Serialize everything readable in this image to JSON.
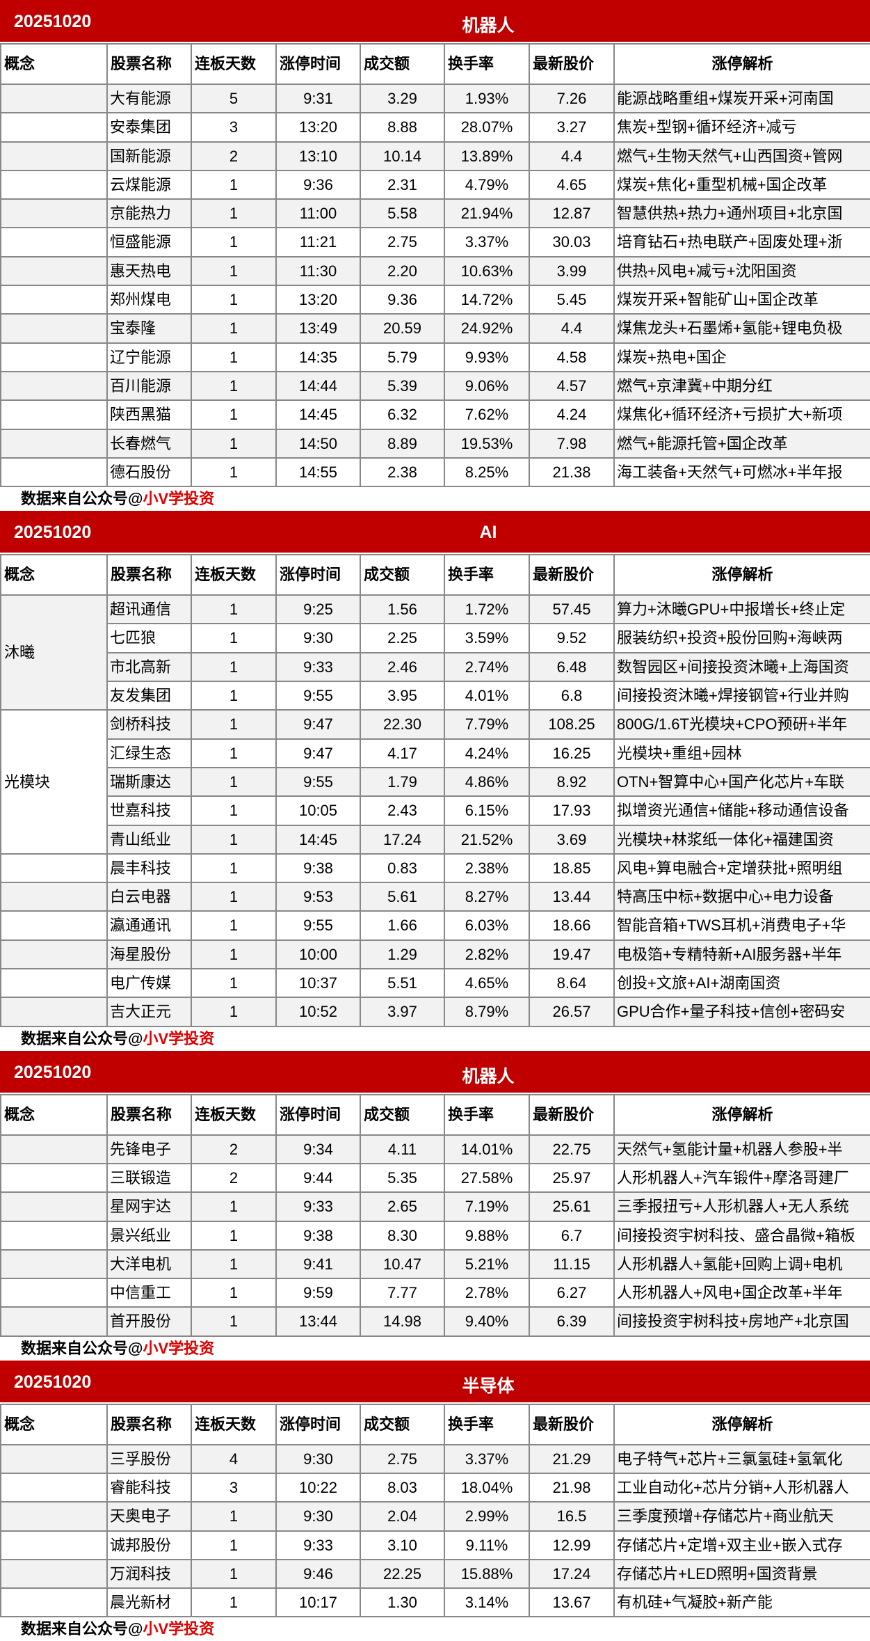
{
  "headers": [
    "概念",
    "股票名称",
    "连板天数",
    "涨停时间",
    "成交额",
    "换手率",
    "最新股价",
    "涨停解析"
  ],
  "footer": {
    "prefix": "数据来自公众号@",
    "brand": "小V学投资"
  },
  "colors": {
    "title_bg": "#c00000",
    "alt_row": "#f2f2f2",
    "brand": "#e00000"
  },
  "tables": [
    {
      "date": "20251020",
      "category": "机器人",
      "groups": [
        {
          "concept": "",
          "rows": [
            [
              "大有能源",
              "5",
              "9:31",
              "3.29",
              "1.93%",
              "7.26",
              "能源战略重组+煤炭开采+河南国"
            ],
            [
              "安泰集团",
              "3",
              "13:20",
              "8.88",
              "28.07%",
              "3.27",
              "焦炭+型钢+循环经济+减亏"
            ],
            [
              "国新能源",
              "2",
              "13:10",
              "10.14",
              "13.89%",
              "4.4",
              "燃气+生物天然气+山西国资+管网"
            ],
            [
              "云煤能源",
              "1",
              "9:36",
              "2.31",
              "4.79%",
              "4.65",
              "煤炭+焦化+重型机械+国企改革"
            ],
            [
              "京能热力",
              "1",
              "11:00",
              "5.58",
              "21.94%",
              "12.87",
              "智慧供热+热力+通州项目+北京国"
            ],
            [
              "恒盛能源",
              "1",
              "11:21",
              "2.75",
              "3.37%",
              "30.03",
              "培育钻石+热电联产+固废处理+浙"
            ],
            [
              "惠天热电",
              "1",
              "11:30",
              "2.20",
              "10.63%",
              "3.99",
              "供热+风电+减亏+沈阳国资"
            ],
            [
              "郑州煤电",
              "1",
              "13:20",
              "9.36",
              "14.72%",
              "5.45",
              "煤炭开采+智能矿山+国企改革"
            ],
            [
              "宝泰隆",
              "1",
              "13:49",
              "20.59",
              "24.92%",
              "4.4",
              "煤焦龙头+石墨烯+氢能+锂电负极"
            ],
            [
              "辽宁能源",
              "1",
              "14:35",
              "5.79",
              "9.93%",
              "4.58",
              "煤炭+热电+国企"
            ],
            [
              "百川能源",
              "1",
              "14:44",
              "5.39",
              "9.06%",
              "4.57",
              "燃气+京津冀+中期分红"
            ],
            [
              "陕西黑猫",
              "1",
              "14:45",
              "6.32",
              "7.62%",
              "4.24",
              "煤焦化+循环经济+亏损扩大+新项"
            ],
            [
              "长春燃气",
              "1",
              "14:50",
              "8.89",
              "19.53%",
              "7.98",
              "燃气+能源托管+国企改革"
            ],
            [
              "德石股份",
              "1",
              "14:55",
              "2.38",
              "8.25%",
              "21.38",
              "海工装备+天然气+可燃冰+半年报"
            ]
          ]
        }
      ]
    },
    {
      "date": "20251020",
      "category": "AI",
      "groups": [
        {
          "concept": "沐曦",
          "rows": [
            [
              "超讯通信",
              "1",
              "9:25",
              "1.56",
              "1.72%",
              "57.45",
              "算力+沐曦GPU+中报增长+终止定"
            ],
            [
              "七匹狼",
              "1",
              "9:30",
              "2.25",
              "3.59%",
              "9.52",
              "服装纺织+投资+股份回购+海峡两"
            ],
            [
              "市北高新",
              "1",
              "9:33",
              "2.46",
              "2.74%",
              "6.48",
              "数智园区+间接投资沐曦+上海国资"
            ],
            [
              "友发集团",
              "1",
              "9:55",
              "3.95",
              "4.01%",
              "6.8",
              "间接投资沐曦+焊接钢管+行业并购"
            ]
          ]
        },
        {
          "concept": "光模块",
          "rows": [
            [
              "剑桥科技",
              "1",
              "9:47",
              "22.30",
              "7.79%",
              "108.25",
              "800G/1.6T光模块+CPO预研+半年"
            ],
            [
              "汇绿生态",
              "1",
              "9:47",
              "4.17",
              "4.24%",
              "16.25",
              "光模块+重组+园林"
            ],
            [
              "瑞斯康达",
              "1",
              "9:55",
              "1.79",
              "4.86%",
              "8.92",
              "OTN+智算中心+国产化芯片+车联"
            ],
            [
              "世嘉科技",
              "1",
              "10:05",
              "2.43",
              "6.15%",
              "17.93",
              "拟增资光通信+储能+移动通信设备"
            ],
            [
              "青山纸业",
              "1",
              "14:45",
              "17.24",
              "21.52%",
              "3.69",
              "光模块+林浆纸一体化+福建国资"
            ]
          ]
        },
        {
          "concept": "",
          "rows": [
            [
              "晨丰科技",
              "1",
              "9:38",
              "0.83",
              "2.38%",
              "18.85",
              "风电+算电融合+定增获批+照明组"
            ],
            [
              "白云电器",
              "1",
              "9:53",
              "5.61",
              "8.27%",
              "13.44",
              "特高压中标+数据中心+电力设备"
            ],
            [
              "瀛通通讯",
              "1",
              "9:55",
              "1.66",
              "6.03%",
              "18.66",
              "智能音箱+TWS耳机+消费电子+华"
            ],
            [
              "海星股份",
              "1",
              "10:00",
              "1.29",
              "2.82%",
              "19.47",
              "电极箔+专精特新+AI服务器+半年"
            ],
            [
              "电广传媒",
              "1",
              "10:37",
              "5.51",
              "4.65%",
              "8.64",
              "创投+文旅+AI+湖南国资"
            ],
            [
              "吉大正元",
              "1",
              "10:52",
              "3.97",
              "8.79%",
              "26.57",
              "GPU合作+量子科技+信创+密码安"
            ]
          ]
        }
      ]
    },
    {
      "date": "20251020",
      "category": "机器人",
      "groups": [
        {
          "concept": "",
          "rows": [
            [
              "先锋电子",
              "2",
              "9:34",
              "4.11",
              "14.01%",
              "22.75",
              "天然气+氢能计量+机器人参股+半"
            ],
            [
              "三联锻造",
              "2",
              "9:44",
              "5.35",
              "27.58%",
              "25.97",
              "人形机器人+汽车锻件+摩洛哥建厂"
            ],
            [
              "星网宇达",
              "1",
              "9:33",
              "2.65",
              "7.19%",
              "25.61",
              "三季报扭亏+人形机器人+无人系统"
            ],
            [
              "景兴纸业",
              "1",
              "9:38",
              "8.30",
              "9.88%",
              "6.7",
              "间接投资宇树科技、盛合晶微+箱板"
            ],
            [
              "大洋电机",
              "1",
              "9:41",
              "10.47",
              "5.21%",
              "11.15",
              "人形机器人+氢能+回购上调+电机"
            ],
            [
              "中信重工",
              "1",
              "9:59",
              "7.77",
              "2.78%",
              "6.27",
              "人形机器人+风电+国企改革+半年"
            ],
            [
              "首开股份",
              "1",
              "13:44",
              "14.98",
              "9.40%",
              "6.39",
              "间接投资宇树科技+房地产+北京国"
            ]
          ]
        }
      ]
    },
    {
      "date": "20251020",
      "category": "半导体",
      "groups": [
        {
          "concept": "",
          "rows": [
            [
              "三孚股份",
              "4",
              "9:30",
              "2.75",
              "3.37%",
              "21.29",
              "电子特气+芯片+三氯氢硅+氢氧化"
            ],
            [
              "睿能科技",
              "3",
              "10:22",
              "8.03",
              "18.04%",
              "21.98",
              "工业自动化+芯片分销+人形机器人"
            ],
            [
              "天奥电子",
              "1",
              "9:30",
              "2.04",
              "2.99%",
              "16.5",
              "三季度预增+存储芯片+商业航天"
            ],
            [
              "诚邦股份",
              "1",
              "9:33",
              "3.10",
              "9.11%",
              "12.99",
              "存储芯片+定增+双主业+嵌入式存"
            ],
            [
              "万润科技",
              "1",
              "9:46",
              "22.25",
              "15.88%",
              "17.24",
              "存储芯片+LED照明+国资背景"
            ],
            [
              "晨光新材",
              "1",
              "10:17",
              "1.30",
              "3.14%",
              "13.67",
              "有机硅+气凝胶+新产能"
            ]
          ]
        }
      ]
    }
  ]
}
